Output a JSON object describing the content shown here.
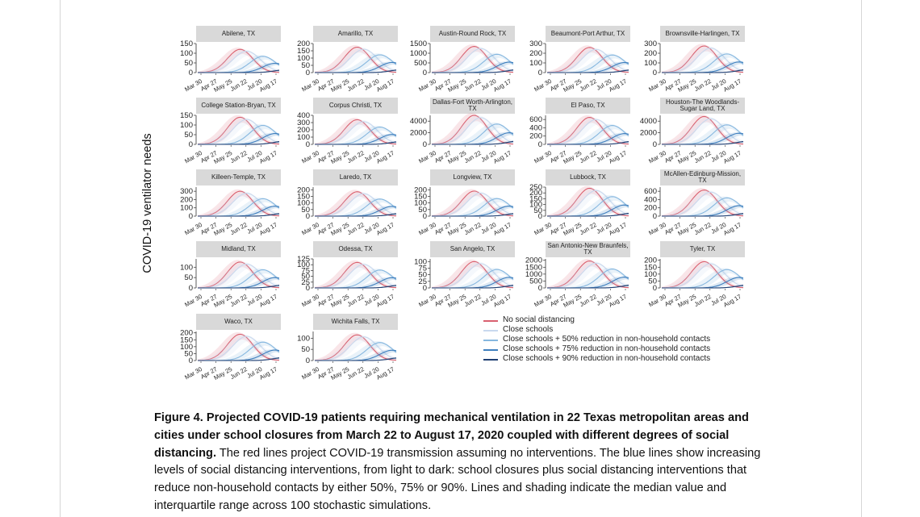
{
  "figure": {
    "y_axis_label": "COVID-19 ventilator needs",
    "x_tick_labels": [
      "Mar 30",
      "Apr 27",
      "May 25",
      "Jun 22",
      "Jul 20",
      "Aug 17"
    ],
    "panels": [
      {
        "title": "Abilene, TX",
        "y_ticks": [
          "150",
          "100",
          "50",
          "0"
        ],
        "y_max": 150,
        "peak": 120
      },
      {
        "title": "Amarillo, TX",
        "y_ticks": [
          "200",
          "150",
          "100",
          "50",
          "0"
        ],
        "y_max": 200,
        "peak": 175
      },
      {
        "title": "Austin-Round Rock, TX",
        "y_ticks": [
          "1500",
          "1000",
          "500",
          "0"
        ],
        "y_max": 1500,
        "peak": 1350
      },
      {
        "title": "Beaumont-Port Arthur, TX",
        "y_ticks": [
          "300",
          "200",
          "100",
          "0"
        ],
        "y_max": 300,
        "peak": 260
      },
      {
        "title": "Brownsville-Harlingen, TX",
        "y_ticks": [
          "300",
          "200",
          "100",
          "0"
        ],
        "y_max": 300,
        "peak": 275
      },
      {
        "title": "College Station-Bryan, TX",
        "y_ticks": [
          "150",
          "100",
          "50",
          "0"
        ],
        "y_max": 150,
        "peak": 140
      },
      {
        "title": "Corpus Christi, TX",
        "y_ticks": [
          "400",
          "300",
          "200",
          "100",
          "0"
        ],
        "y_max": 400,
        "peak": 340
      },
      {
        "title": "Dallas-Fort Worth-Arlington, TX",
        "y_ticks": [
          "4000",
          "2000",
          "0"
        ],
        "y_max": 5000,
        "peak": 5000
      },
      {
        "title": "El Paso, TX",
        "y_ticks": [
          "600",
          "400",
          "200",
          "0"
        ],
        "y_max": 700,
        "peak": 650
      },
      {
        "title": "Houston-The Woodlands-Sugar Land, TX",
        "y_ticks": [
          "4000",
          "2000",
          "0"
        ],
        "y_max": 5000,
        "peak": 4800
      },
      {
        "title": "Killeen-Temple, TX",
        "y_ticks": [
          "300",
          "200",
          "100",
          "0"
        ],
        "y_max": 350,
        "peak": 300
      },
      {
        "title": "Laredo, TX",
        "y_ticks": [
          "200",
          "150",
          "100",
          "50",
          "0"
        ],
        "y_max": 220,
        "peak": 185
      },
      {
        "title": "Longview, TX",
        "y_ticks": [
          "200",
          "150",
          "100",
          "50",
          "0"
        ],
        "y_max": 220,
        "peak": 190
      },
      {
        "title": "Lubbock, TX",
        "y_ticks": [
          "250",
          "200",
          "150",
          "100",
          "50",
          "0"
        ],
        "y_max": 250,
        "peak": 240
      },
      {
        "title": "McAllen-Edinburg-Mission, TX",
        "y_ticks": [
          "600",
          "400",
          "200",
          "0"
        ],
        "y_max": 700,
        "peak": 630
      },
      {
        "title": "Midland, TX",
        "y_ticks": [
          "100",
          "50",
          "0"
        ],
        "y_max": 140,
        "peak": 125
      },
      {
        "title": "Odessa, TX",
        "y_ticks": [
          "125",
          "100",
          "75",
          "50",
          "25",
          "0"
        ],
        "y_max": 125,
        "peak": 110
      },
      {
        "title": "San Angelo, TX",
        "y_ticks": [
          "100",
          "75",
          "50",
          "25",
          "0"
        ],
        "y_max": 110,
        "peak": 100
      },
      {
        "title": "San Antonio-New Braunfels, TX",
        "y_ticks": [
          "2000",
          "1500",
          "1000",
          "500",
          "0"
        ],
        "y_max": 2100,
        "peak": 1950
      },
      {
        "title": "Tyler, TX",
        "y_ticks": [
          "200",
          "150",
          "100",
          "50",
          "0"
        ],
        "y_max": 210,
        "peak": 190
      },
      {
        "title": "Waco, TX",
        "y_ticks": [
          "200",
          "150",
          "100",
          "50",
          "0"
        ],
        "y_max": 210,
        "peak": 190
      },
      {
        "title": "Wichita Falls, TX",
        "y_ticks": [
          "100",
          "50",
          "0"
        ],
        "y_max": 130,
        "peak": 115
      }
    ],
    "legend": [
      {
        "label": "No social distancing",
        "color": "#d9606f"
      },
      {
        "label": "Close schools",
        "color": "#c9d9ee"
      },
      {
        "label": "Close schools + 50% reduction in non-household contacts",
        "color": "#86b7df"
      },
      {
        "label": "Close schools + 75% reduction in non-household contacts",
        "color": "#3f7fbe"
      },
      {
        "label": "Close schools + 90% reduction in non-household contacts",
        "color": "#1f3f73"
      }
    ]
  },
  "caption": {
    "bold": "Figure 4. Projected COVID-19 patients requiring mechanical ventilation in 22 Texas metropolitan areas and cities under school closures from March 22 to August 17, 2020 coupled with different degrees of social distancing.",
    "body": " The red lines project COVID-19 transmission assuming no interventions. The blue lines show increasing levels of social distancing interventions, from light to dark: school closures plus social distancing interventions that reduce non-household contacts by either 50%, 75% or 90%. Lines and shading indicate the median value and interquartile range across 100 stochastic simulations."
  }
}
